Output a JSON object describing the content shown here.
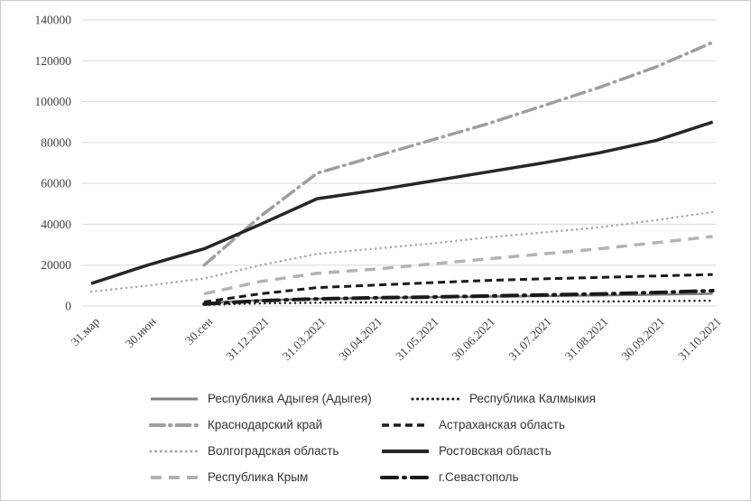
{
  "frame": {
    "background": "#ffffff",
    "border_color": "#c9c9c9"
  },
  "axes": {
    "gridline_color": "#d9d9d9",
    "label_color": "#404040"
  },
  "chart_data": {
    "type": "line",
    "title": "",
    "xlabel": "",
    "ylabel": "",
    "ylim": [
      0,
      140000
    ],
    "ytick_step": 20000,
    "grid": true,
    "legend_position": "bottom",
    "y_tick_labels": [
      "0",
      "20000",
      "40000",
      "60000",
      "80000",
      "100000",
      "120000",
      "140000"
    ],
    "categories": [
      "31.мар",
      "30.июн",
      "30.сен",
      "31.12.2021",
      "31.03.2021",
      "30.04.2021",
      "31.05.2021",
      "30.06.2021",
      "31.07.2021",
      "31.08.2021",
      "30.09.2021",
      "31.10.2021"
    ],
    "series": [
      {
        "name": "Республика Адыгея (Адыгея)",
        "color": "#7f7f7f",
        "style": "solid",
        "dash": "",
        "width": 2.5,
        "values": [
          null,
          null,
          1500,
          2800,
          3500,
          3900,
          4300,
          4600,
          4900,
          5200,
          5600,
          6000
        ]
      },
      {
        "name": "Республика Калмыкия",
        "color": "#1a1a1a",
        "style": "dotted",
        "dash": "0.1 5.5",
        "width": 2.5,
        "values": [
          null,
          null,
          600,
          1300,
          1600,
          1800,
          1900,
          2000,
          2100,
          2200,
          2400,
          2600
        ]
      },
      {
        "name": "Краснодарский край",
        "color": "#9e9e9e",
        "style": "dashdot",
        "dash": "15 6 1.5 6",
        "width": 3.5,
        "values": [
          null,
          null,
          20000,
          44000,
          65000,
          73000,
          81000,
          89000,
          98000,
          107000,
          117000,
          129000
        ]
      },
      {
        "name": "Астраханская область",
        "color": "#1a1a1a",
        "style": "dashed",
        "dash": "8 5",
        "width": 3,
        "values": [
          null,
          null,
          2000,
          6000,
          9000,
          10200,
          11400,
          12500,
          13300,
          14000,
          14700,
          15400
        ]
      },
      {
        "name": "Волгоградская область",
        "color": "#a6a6a6",
        "style": "dotted",
        "dash": "0.1 5.5",
        "width": 2.5,
        "values": [
          7000,
          10000,
          13500,
          20000,
          25500,
          28000,
          30500,
          33500,
          36000,
          38500,
          42000,
          46000
        ]
      },
      {
        "name": "Ростовская область",
        "color": "#262626",
        "style": "solid",
        "dash": "",
        "width": 3.5,
        "values": [
          11000,
          20000,
          28000,
          40000,
          52500,
          56500,
          61000,
          65500,
          70000,
          75000,
          81000,
          90000
        ]
      },
      {
        "name": "Республика Крым",
        "color": "#b3b3b3",
        "style": "dashed",
        "dash": "12 8",
        "width": 3.5,
        "values": [
          null,
          null,
          6000,
          12000,
          16000,
          18000,
          20500,
          23000,
          25500,
          28000,
          31000,
          34000
        ]
      },
      {
        "name": "г.Севастополь",
        "color": "#1a1a1a",
        "style": "dashdot",
        "dash": "17 7 2 7",
        "width": 4,
        "values": [
          null,
          null,
          1000,
          2600,
          3500,
          4000,
          4400,
          4900,
          5400,
          5900,
          6600,
          7500
        ]
      }
    ]
  }
}
